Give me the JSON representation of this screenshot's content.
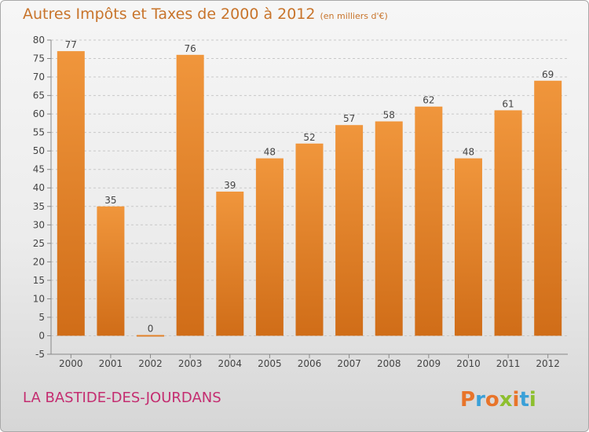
{
  "chart_data": {
    "type": "bar",
    "title": "Autres Impôts et Taxes de 2000 à 2012",
    "unit": "(en milliers d'€)",
    "categories": [
      "2000",
      "2001",
      "2002",
      "2003",
      "2004",
      "2005",
      "2006",
      "2007",
      "2008",
      "2009",
      "2010",
      "2011",
      "2012"
    ],
    "values": [
      77,
      35,
      0,
      76,
      39,
      48,
      52,
      57,
      58,
      62,
      48,
      61,
      69
    ],
    "ylim": [
      -5,
      80
    ],
    "yticks": [
      -5,
      0,
      5,
      10,
      15,
      20,
      25,
      30,
      35,
      40,
      45,
      50,
      55,
      60,
      65,
      70,
      75,
      80
    ],
    "grid": "horizontal dashed",
    "bar_color": "#f0963c",
    "bar_color_dark": "#d06d18"
  },
  "place_name": "LA BASTIDE-DES-JOURDANS",
  "brand": {
    "name": "Proxiti",
    "letters": [
      "P",
      "r",
      "o",
      "x",
      "i",
      "t",
      "i"
    ],
    "colors": [
      "#e8742a",
      "#3aa0d8",
      "#e8742a",
      "#8dbf2e",
      "#e8742a",
      "#3aa0d8",
      "#8dbf2e"
    ]
  }
}
